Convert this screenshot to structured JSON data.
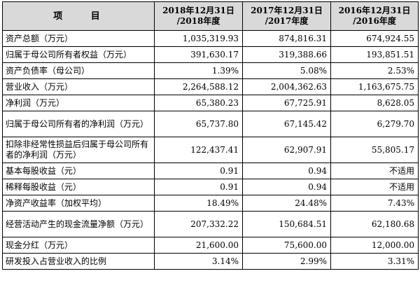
{
  "table": {
    "headers": [
      {
        "line1": "项 目",
        "line2": ""
      },
      {
        "line1": "2018年12月31日",
        "line2": "/2018年度"
      },
      {
        "line1": "2017年12月31日",
        "line2": "/2017年度"
      },
      {
        "line1": "2016年12月31日",
        "line2": "/2016年度"
      }
    ],
    "rows": [
      {
        "label": "资产总额（万元）",
        "values": [
          "1,035,319.93",
          "874,816.31",
          "674,924.55"
        ]
      },
      {
        "label": "归属于母公司所有者权益（万元）",
        "values": [
          "391,630.17",
          "319,388.66",
          "193,851.51"
        ]
      },
      {
        "label": "资产负债率（母公司）",
        "values": [
          "1.39%",
          "5.08%",
          "2.53%"
        ]
      },
      {
        "label": "营业收入（万元）",
        "values": [
          "2,264,588.12",
          "2,004,362.63",
          "1,163,675.75"
        ]
      },
      {
        "label": "净利润（万元）",
        "values": [
          "65,380.23",
          "67,725.91",
          "8,628.05"
        ]
      },
      {
        "label": "归属于母公司所有者的净利润（万元）",
        "values": [
          "65,737.80",
          "67,145.42",
          "6,279.70"
        ]
      },
      {
        "label": "扣除非经常性损益后归属于母公司所有者的净利润（万元）",
        "values": [
          "122,437.41",
          "62,907.91",
          "55,805.17"
        ]
      },
      {
        "label": "基本每股收益（元）",
        "values": [
          "0.91",
          "0.94",
          "不适用"
        ]
      },
      {
        "label": "稀释每股收益（元）",
        "values": [
          "0.91",
          "0.94",
          "不适用"
        ]
      },
      {
        "label": "净资产收益率（加权平均）",
        "values": [
          "18.49%",
          "24.48%",
          "7.43%"
        ]
      },
      {
        "label": "经营活动产生的现金流量净额（万元）",
        "values": [
          "207,332.22",
          "150,684.51",
          "62,180.68"
        ]
      },
      {
        "label": "现金分红（万元）",
        "values": [
          "21,600.00",
          "75,600.00",
          "12,000.00"
        ]
      },
      {
        "label": "研发投入占营业收入的比例",
        "values": [
          "3.14%",
          "2.99%",
          "3.31%"
        ]
      }
    ]
  }
}
